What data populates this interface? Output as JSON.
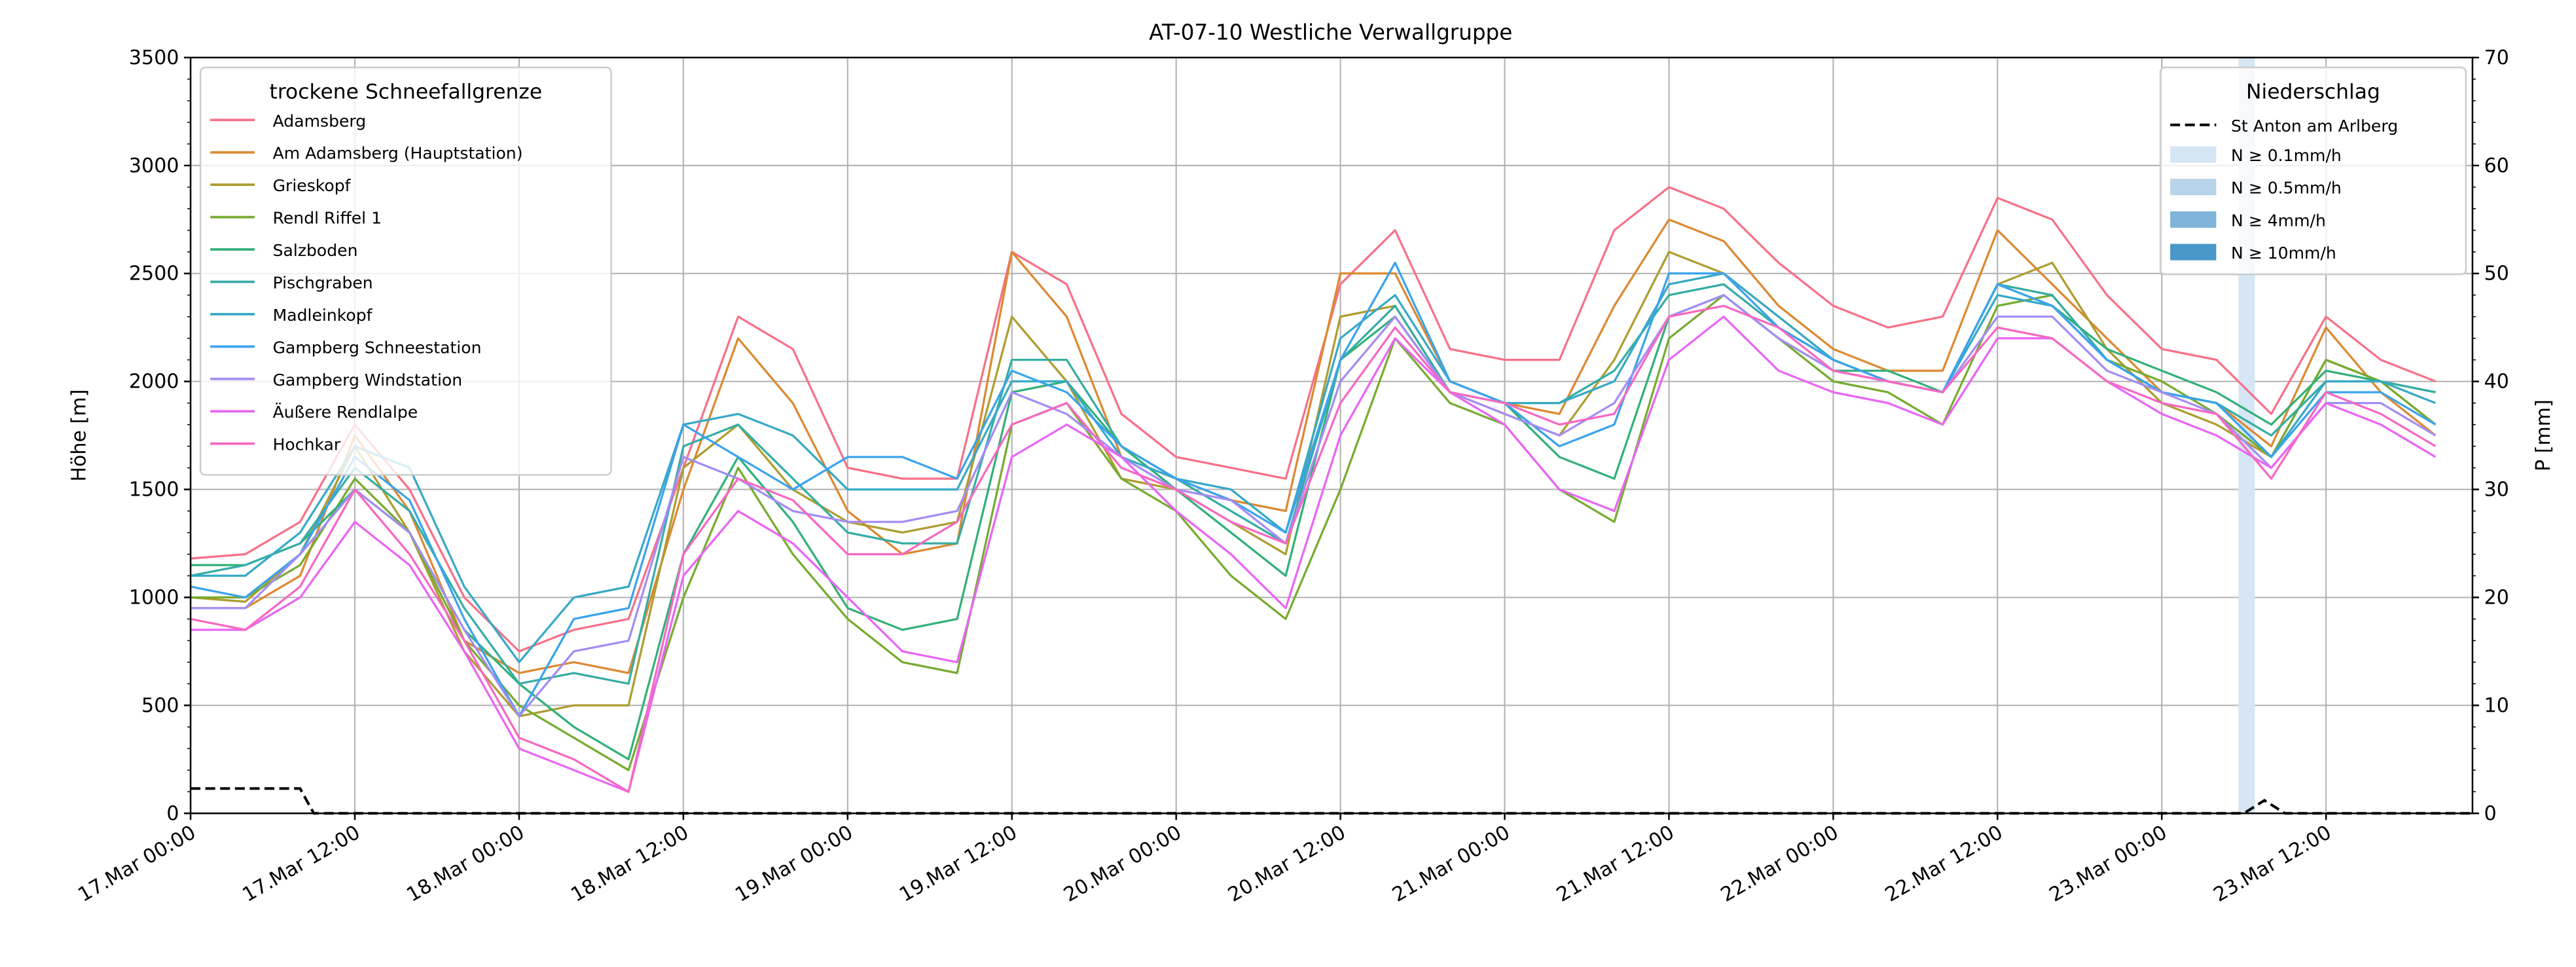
{
  "chart_data": {
    "type": "line",
    "title": "AT-07-10 Westliche Verwallgruppe",
    "ylabel": "Höhe [m]",
    "ylabel_right": "P [mm]",
    "ylim": [
      0,
      3500
    ],
    "ylim_right": [
      0,
      70
    ],
    "xlim_hours": [
      0,
      166.7
    ],
    "grid": true,
    "yticks": [
      "0",
      "500",
      "1000",
      "1500",
      "2000",
      "2500",
      "3000",
      "3500"
    ],
    "yticks_right": [
      "0",
      "10",
      "20",
      "30",
      "40",
      "50",
      "60",
      "70"
    ],
    "xticks": [
      "17.Mar 00:00",
      "17.Mar 12:00",
      "18.Mar 00:00",
      "18.Mar 12:00",
      "19.Mar 00:00",
      "19.Mar 12:00",
      "20.Mar 00:00",
      "20.Mar 12:00",
      "21.Mar 00:00",
      "21.Mar 12:00",
      "22.Mar 00:00",
      "22.Mar 12:00",
      "23.Mar 00:00",
      "23.Mar 12:00"
    ],
    "x_hours": [
      0,
      4,
      8,
      12,
      16,
      20,
      24,
      28,
      32,
      36,
      40,
      44,
      48,
      52,
      56,
      60,
      64,
      68,
      72,
      76,
      80,
      84,
      88,
      92,
      96,
      100,
      104,
      108,
      112,
      116,
      120,
      124,
      128,
      132,
      136,
      140,
      144,
      148,
      152,
      156,
      160,
      164
    ],
    "legend_left": {
      "title": "trockene Schneefallgrenze",
      "placement": "upper-left"
    },
    "series": [
      {
        "name": "Adamsberg",
        "color": "#f77189",
        "values": [
          1180,
          1200,
          1350,
          1800,
          1500,
          1000,
          750,
          850,
          900,
          1600,
          2300,
          2150,
          1600,
          1550,
          1550,
          2600,
          2450,
          1850,
          1650,
          1600,
          1550,
          2450,
          2700,
          2150,
          2100,
          2100,
          2700,
          2900,
          2800,
          2550,
          2350,
          2250,
          2300,
          2850,
          2750,
          2400,
          2150,
          2100,
          1850,
          2300,
          2100,
          2000
        ]
      },
      {
        "name": "Am Adamsberg (Hauptstation)",
        "color": "#dc8932",
        "values": [
          950,
          950,
          1100,
          1750,
          1400,
          800,
          650,
          700,
          650,
          1500,
          2200,
          1900,
          1400,
          1200,
          1250,
          2600,
          2300,
          1650,
          1550,
          1450,
          1400,
          2500,
          2500,
          2000,
          1900,
          1850,
          2350,
          2750,
          2650,
          2350,
          2150,
          2050,
          2050,
          2700,
          2450,
          2200,
          1950,
          1900,
          1700,
          2250,
          1950,
          1750
        ]
      },
      {
        "name": "Grieskopf",
        "color": "#ae9d31",
        "values": [
          1000,
          980,
          1200,
          1700,
          1300,
          750,
          450,
          500,
          500,
          1600,
          1800,
          1500,
          1350,
          1300,
          1350,
          2300,
          2000,
          1550,
          1500,
          1350,
          1200,
          2300,
          2350,
          1950,
          1850,
          1750,
          2100,
          2600,
          2500,
          2300,
          2100,
          2000,
          1950,
          2450,
          2550,
          2150,
          1900,
          1800,
          1650,
          2100,
          2000,
          1800
        ]
      },
      {
        "name": "Rendl Riffel 1",
        "color": "#77ab31",
        "values": [
          1000,
          1000,
          1150,
          1550,
          1300,
          800,
          500,
          350,
          200,
          1000,
          1600,
          1200,
          900,
          700,
          650,
          1800,
          1900,
          1550,
          1400,
          1100,
          900,
          1500,
          2200,
          1900,
          1800,
          1500,
          1350,
          2200,
          2400,
          2200,
          2000,
          1950,
          1800,
          2350,
          2400,
          2100,
          2000,
          1850,
          1650,
          2100,
          2000,
          1800
        ]
      },
      {
        "name": "Salzboden",
        "color": "#33b07a",
        "values": [
          1150,
          1150,
          1250,
          1500,
          1300,
          850,
          600,
          400,
          250,
          1200,
          1650,
          1350,
          950,
          850,
          900,
          1950,
          2000,
          1700,
          1500,
          1300,
          1100,
          2100,
          2300,
          1950,
          1900,
          1650,
          1550,
          2300,
          2400,
          2200,
          2050,
          2050,
          1950,
          2450,
          2350,
          2150,
          2050,
          1950,
          1800,
          2050,
          2000,
          1950
        ]
      },
      {
        "name": "Pischgraben",
        "color": "#36ada4",
        "values": [
          1100,
          1150,
          1250,
          1600,
          1400,
          950,
          600,
          650,
          600,
          1700,
          1800,
          1550,
          1300,
          1250,
          1250,
          2100,
          2100,
          1700,
          1550,
          1400,
          1250,
          2100,
          2350,
          1950,
          1900,
          1900,
          2050,
          2400,
          2450,
          2250,
          2100,
          2000,
          1950,
          2450,
          2400,
          2100,
          1950,
          1900,
          1750,
          2000,
          2000,
          1950
        ]
      },
      {
        "name": "Madleinkopf",
        "color": "#38a9c5",
        "values": [
          1100,
          1100,
          1300,
          1700,
          1600,
          1050,
          700,
          1000,
          1050,
          1800,
          1850,
          1750,
          1500,
          1500,
          1500,
          2000,
          2000,
          1650,
          1550,
          1500,
          1300,
          2200,
          2400,
          2000,
          1900,
          1900,
          2000,
          2450,
          2500,
          2300,
          2100,
          2000,
          1950,
          2400,
          2350,
          2100,
          1950,
          1900,
          1650,
          2000,
          2000,
          1900
        ]
      },
      {
        "name": "Gampberg Schneestation",
        "color": "#3ba3ec",
        "values": [
          1050,
          1000,
          1200,
          1650,
          1450,
          900,
          450,
          900,
          950,
          1800,
          1650,
          1500,
          1650,
          1650,
          1550,
          2050,
          1950,
          1700,
          1550,
          1450,
          1300,
          2100,
          2550,
          2000,
          1900,
          1700,
          1800,
          2500,
          2500,
          2250,
          2100,
          2000,
          1950,
          2450,
          2350,
          2100,
          1950,
          1900,
          1650,
          1950,
          1950,
          1800
        ]
      },
      {
        "name": "Gampberg Windstation",
        "color": "#a48cf4",
        "values": [
          950,
          950,
          1200,
          1500,
          1300,
          850,
          450,
          750,
          800,
          1650,
          1550,
          1400,
          1350,
          1350,
          1400,
          1950,
          1850,
          1650,
          1500,
          1450,
          1250,
          2000,
          2300,
          1950,
          1850,
          1750,
          1900,
          2300,
          2400,
          2200,
          2050,
          2000,
          1950,
          2300,
          2300,
          2050,
          1950,
          1850,
          1600,
          1900,
          1900,
          1750
        ]
      },
      {
        "name": "Äußere Rendlalpe",
        "color": "#e866f4",
        "values": [
          850,
          850,
          1000,
          1350,
          1150,
          750,
          300,
          200,
          100,
          1100,
          1400,
          1250,
          1000,
          750,
          700,
          1650,
          1800,
          1650,
          1400,
          1200,
          950,
          1750,
          2200,
          1950,
          1800,
          1500,
          1400,
          2100,
          2300,
          2050,
          1950,
          1900,
          1800,
          2200,
          2200,
          2000,
          1850,
          1750,
          1600,
          1900,
          1800,
          1650
        ]
      },
      {
        "name": "Hochkar",
        "color": "#f668c2",
        "values": [
          900,
          850,
          1050,
          1500,
          1200,
          800,
          350,
          250,
          100,
          1200,
          1550,
          1450,
          1200,
          1200,
          1350,
          1800,
          1900,
          1600,
          1500,
          1350,
          1250,
          1900,
          2250,
          1950,
          1900,
          1800,
          1850,
          2300,
          2350,
          2250,
          2050,
          2000,
          1950,
          2250,
          2200,
          2000,
          1900,
          1850,
          1550,
          1950,
          1850,
          1700
        ]
      }
    ],
    "legend_right": {
      "title": "Niederschlag",
      "placement": "upper-right"
    },
    "precip_series": {
      "name": "St Anton am Arlberg",
      "color": "#000000",
      "style": "dashed",
      "x_hours": [
        0,
        8,
        9,
        148,
        150,
        151.5,
        153,
        166.7
      ],
      "values": [
        2.3,
        2.3,
        0,
        0,
        0,
        1.2,
        0,
        0
      ]
    },
    "precip_classes": [
      {
        "label": "N ≥ 0.1mm/h",
        "color": "#d6e6f4"
      },
      {
        "label": "N ≥ 0.5mm/h",
        "color": "#b7d4ea"
      },
      {
        "label": "N ≥ 4mm/h",
        "color": "#7fb4d8"
      },
      {
        "label": "N ≥ 10mm/h",
        "color": "#4a97c9"
      }
    ],
    "precip_spans": [
      {
        "start_hour": 149.6,
        "end_hour": 150.8,
        "class": 0
      }
    ]
  }
}
